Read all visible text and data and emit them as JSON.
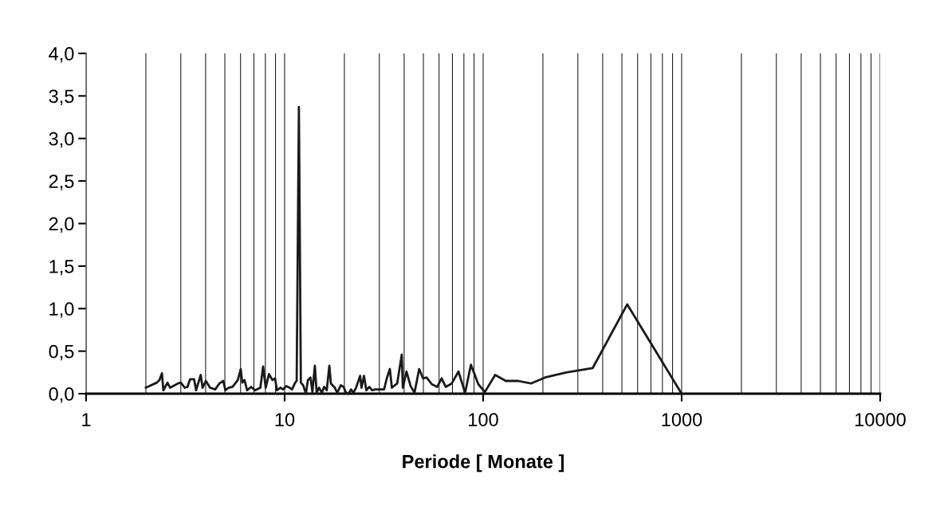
{
  "chart_data": {
    "type": "line",
    "xlabel": "Periode [ Monate ]",
    "log": "x",
    "grid": "x",
    "marker": "none",
    "line_style": "solid",
    "xlim": [
      1,
      10000
    ],
    "xticks": [
      1,
      10,
      100,
      1000,
      10000
    ],
    "ylim": [
      0,
      4
    ],
    "yticks": [
      {
        "value": 0,
        "label": "0,0"
      },
      {
        "value": 0.5,
        "label": "0,5"
      },
      {
        "value": 1,
        "label": "1,0"
      },
      {
        "value": 1.5,
        "label": "1,5"
      },
      {
        "value": 2,
        "label": "2,0"
      },
      {
        "value": 2.5,
        "label": "2,5"
      },
      {
        "value": 3,
        "label": "3,0"
      },
      {
        "value": 3.5,
        "label": "3,5"
      },
      {
        "value": 4,
        "label": "4,0"
      }
    ],
    "series": [
      {
        "color": "#1a1a1a",
        "x": [
          2.0,
          2.27,
          2.34,
          2.41,
          2.45,
          2.57,
          2.65,
          2.9,
          3.0,
          3.14,
          3.24,
          3.34,
          3.5,
          3.58,
          3.78,
          3.86,
          4.01,
          4.21,
          4.47,
          4.69,
          4.91,
          5.03,
          5.22,
          5.47,
          5.81,
          6.01,
          6.12,
          6.28,
          6.47,
          6.78,
          7.1,
          7.55,
          7.79,
          8.03,
          8.34,
          8.68,
          8.95,
          9.15,
          9.52,
          9.82,
          10.2,
          10.6,
          10.9,
          11.3,
          11.5,
          11.8,
          12.07,
          12.4,
          12.8,
          13.1,
          13.5,
          13.8,
          14.2,
          14.5,
          14.9,
          15.4,
          15.8,
          16.3,
          16.8,
          17.1,
          17.9,
          18.4,
          19.2,
          19.8,
          20.4,
          21.0,
          21.6,
          22.2,
          22.9,
          24.0,
          24.4,
          25.1,
          25.8,
          26.7,
          27.6,
          28.6,
          31.7,
          32.7,
          33.9,
          34.7,
          36.9,
          38.9,
          39.4,
          41.1,
          43.1,
          45.1,
          47.6,
          49.8,
          51.9,
          55.2,
          58.7,
          61.8,
          64.8,
          69.5,
          75.1,
          81.1,
          86.8,
          94.6,
          102,
          115,
          130,
          150,
          174,
          205,
          262,
          356,
          532,
          1000
        ],
        "values": [
          0.07,
          0.13,
          0.16,
          0.24,
          0.04,
          0.13,
          0.07,
          0.12,
          0.13,
          0.07,
          0.08,
          0.17,
          0.17,
          0.04,
          0.22,
          0.07,
          0.15,
          0.07,
          0.05,
          0.12,
          0.15,
          0.04,
          0.07,
          0.08,
          0.16,
          0.29,
          0.13,
          0.16,
          0.04,
          0.08,
          0.04,
          0.07,
          0.32,
          0.07,
          0.23,
          0.16,
          0.18,
          0.04,
          0.07,
          0.05,
          0.09,
          0.07,
          0.05,
          0.13,
          0.15,
          3.37,
          0.13,
          0.1,
          0.0,
          0.16,
          0.19,
          0.02,
          0.33,
          0.01,
          0.07,
          0.01,
          0.08,
          0.04,
          0.33,
          0.12,
          0.07,
          0.01,
          0.1,
          0.08,
          0.01,
          0.0,
          0.05,
          0.01,
          0.07,
          0.21,
          0.07,
          0.21,
          0.04,
          0.08,
          0.04,
          0.05,
          0.05,
          0.18,
          0.29,
          0.07,
          0.12,
          0.46,
          0.07,
          0.26,
          0.09,
          0.01,
          0.29,
          0.18,
          0.19,
          0.11,
          0.08,
          0.18,
          0.08,
          0.12,
          0.26,
          0.01,
          0.34,
          0.11,
          0.02,
          0.22,
          0.15,
          0.15,
          0.12,
          0.19,
          0.25,
          0.3,
          1.05,
          0.0
        ]
      }
    ]
  }
}
